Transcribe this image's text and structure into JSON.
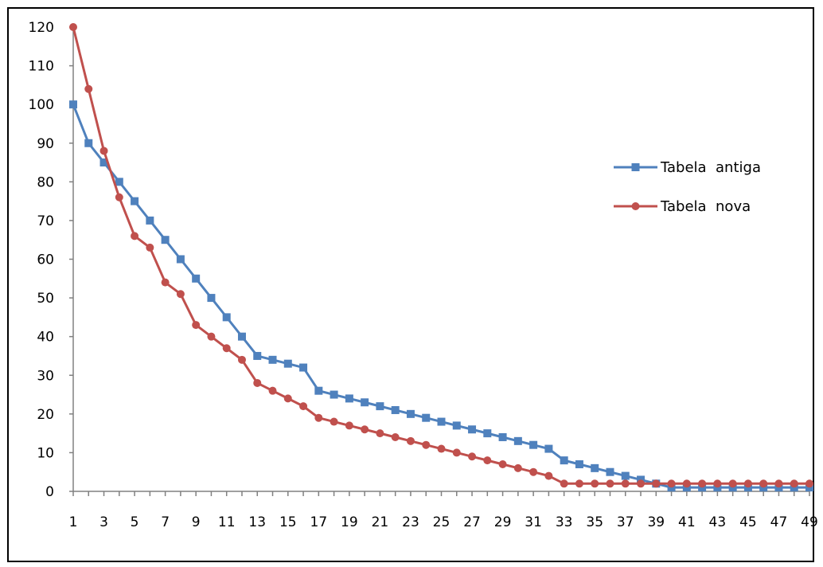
{
  "chart_data": {
    "type": "line",
    "title": "",
    "xlabel": "",
    "ylabel": "",
    "ylim": [
      0,
      120
    ],
    "y_ticks": [
      0,
      10,
      20,
      30,
      40,
      50,
      60,
      70,
      80,
      90,
      100,
      110,
      120
    ],
    "x": [
      1,
      2,
      3,
      4,
      5,
      6,
      7,
      8,
      9,
      10,
      11,
      12,
      13,
      14,
      15,
      16,
      17,
      18,
      19,
      20,
      21,
      22,
      23,
      24,
      25,
      26,
      27,
      28,
      29,
      30,
      31,
      32,
      33,
      34,
      35,
      36,
      37,
      38,
      39,
      40,
      41,
      42,
      43,
      44,
      45,
      46,
      47,
      48,
      49
    ],
    "x_tick_labels": [
      1,
      3,
      5,
      7,
      9,
      11,
      13,
      15,
      17,
      19,
      21,
      23,
      25,
      27,
      29,
      31,
      33,
      35,
      37,
      39,
      41,
      43,
      45,
      47,
      49
    ],
    "grid": false,
    "legend_position": "right",
    "series": [
      {
        "name": "Tabela  antiga",
        "color": "#4f81bd",
        "marker": "square",
        "values": [
          100,
          90,
          85,
          80,
          75,
          70,
          65,
          60,
          55,
          50,
          45,
          40,
          35,
          34,
          33,
          32,
          26,
          25,
          24,
          23,
          22,
          21,
          20,
          19,
          18,
          17,
          16,
          15,
          14,
          13,
          12,
          11,
          8,
          7,
          6,
          5,
          4,
          3,
          2,
          1,
          1,
          1,
          1,
          1,
          1,
          1,
          1,
          1,
          1
        ]
      },
      {
        "name": "Tabela  nova",
        "color": "#c0504d",
        "marker": "circle",
        "values": [
          120,
          104,
          88,
          76,
          66,
          63,
          54,
          51,
          43,
          40,
          37,
          34,
          28,
          26,
          24,
          22,
          19,
          18,
          17,
          16,
          15,
          14,
          13,
          12,
          11,
          10,
          9,
          8,
          7,
          6,
          5,
          4,
          2,
          2,
          2,
          2,
          2,
          2,
          2,
          2,
          2,
          2,
          2,
          2,
          2,
          2,
          2,
          2,
          2
        ]
      }
    ]
  }
}
